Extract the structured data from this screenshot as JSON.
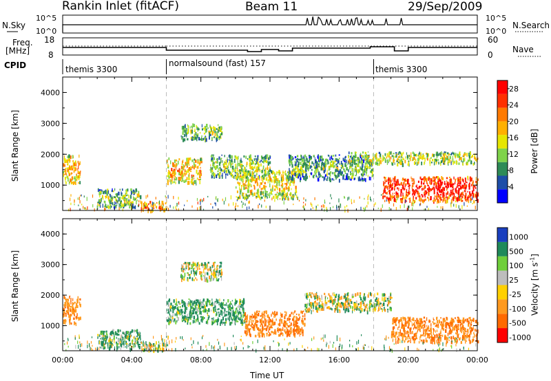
{
  "header": {
    "title": "Rankin Inlet (fitACF)",
    "beam": "Beam 11",
    "date": "29/Sep/2009"
  },
  "nsky_panel": {
    "left_label": "N.Sky",
    "right_label": "N.Search",
    "ticks_left": [
      "10^5",
      "10^0"
    ],
    "ticks_right": [
      "10^5",
      "10^0"
    ]
  },
  "freq_panel": {
    "left_label_line1": "Freq.",
    "left_label_line2": "[MHz]",
    "right_label": "Nave",
    "ticks_left": [
      "18",
      "8"
    ],
    "ticks_right": [
      "60",
      "0"
    ]
  },
  "cpid": {
    "label": "CPID",
    "segments": [
      {
        "name": "themis 3300",
        "start_hour": 0
      },
      {
        "name": "normalsound (fast) 157",
        "start_hour": 6
      },
      {
        "name": "themis 3300",
        "start_hour": 18
      }
    ]
  },
  "colors": {
    "power_scale": [
      "#0000ff",
      "#1e4ea8",
      "#2e8b57",
      "#7fd34a",
      "#e6e600",
      "#ffb000",
      "#ff7a00",
      "#ff3000",
      "#ff0000"
    ],
    "velocity_scale": [
      "#1a3fbf",
      "#1f8a5a",
      "#6fcf3a",
      "#bdbdbd",
      "#ffd000",
      "#ff9a1f",
      "#ff6a00",
      "#ff0000"
    ]
  },
  "chart_data": [
    {
      "type": "heatmap",
      "title": "",
      "xlabel": "",
      "ylabel": "Slant Range [km]",
      "xlim": [
        0,
        24
      ],
      "ylim": [
        180,
        4500
      ],
      "yticks": [
        "1000",
        "2000",
        "3000",
        "4000"
      ],
      "colorbar": {
        "label": "Power [dB]",
        "ticks": [
          "4",
          "8",
          "12",
          "16",
          "20",
          "24",
          "28"
        ],
        "range": [
          0,
          30
        ]
      },
      "echo_regions": [
        {
          "x": [
            0.0,
            1.0
          ],
          "y": [
            1100,
            2000
          ],
          "level": 20
        },
        {
          "x": [
            2.0,
            4.5
          ],
          "y": [
            300,
            900
          ],
          "level": 14
        },
        {
          "x": [
            4.5,
            6.0
          ],
          "y": [
            200,
            500
          ],
          "level": 24
        },
        {
          "x": [
            6.0,
            8.0
          ],
          "y": [
            1100,
            1900
          ],
          "level": 20
        },
        {
          "x": [
            6.8,
            9.2
          ],
          "y": [
            2500,
            3000
          ],
          "level": 14
        },
        {
          "x": [
            8.5,
            12.0
          ],
          "y": [
            1300,
            2000
          ],
          "level": 14
        },
        {
          "x": [
            10.0,
            13.5
          ],
          "y": [
            600,
            1500
          ],
          "level": 18
        },
        {
          "x": [
            13.0,
            18.0
          ],
          "y": [
            1200,
            2000
          ],
          "level": 12
        },
        {
          "x": [
            16.5,
            24.0
          ],
          "y": [
            1700,
            2100
          ],
          "level": 16
        },
        {
          "x": [
            18.5,
            24.0
          ],
          "y": [
            500,
            1300
          ],
          "level": 28
        }
      ]
    },
    {
      "type": "heatmap",
      "title": "",
      "xlabel": "Time UT",
      "ylabel": "Slant Range [km]",
      "xlim": [
        0,
        24
      ],
      "ylim": [
        180,
        4500
      ],
      "yticks": [
        "1000",
        "2000",
        "3000",
        "4000"
      ],
      "xticks": [
        "00:00",
        "04:00",
        "08:00",
        "12:00",
        "16:00",
        "20:00",
        "00:00"
      ],
      "colorbar": {
        "label": "Velocity [m s^-1]",
        "ticks": [
          "1000",
          "500",
          "100",
          "25",
          "-25",
          "-100",
          "-500",
          "-1000"
        ],
        "range": [
          -1000,
          1000
        ]
      },
      "echo_regions": [
        {
          "x": [
            0.0,
            1.0
          ],
          "y": [
            1100,
            2000
          ],
          "level": -400
        },
        {
          "x": [
            2.0,
            4.5
          ],
          "y": [
            300,
            900
          ],
          "level": 200
        },
        {
          "x": [
            4.5,
            6.0
          ],
          "y": [
            200,
            500
          ],
          "level": 0
        },
        {
          "x": [
            6.0,
            10.5
          ],
          "y": [
            1100,
            1900
          ],
          "level": 200
        },
        {
          "x": [
            6.8,
            9.2
          ],
          "y": [
            2500,
            3100
          ],
          "level": 0
        },
        {
          "x": [
            10.5,
            14.0
          ],
          "y": [
            700,
            1500
          ],
          "level": -500
        },
        {
          "x": [
            14.0,
            19.0
          ],
          "y": [
            1500,
            2100
          ],
          "level": 0
        },
        {
          "x": [
            19.0,
            24.0
          ],
          "y": [
            500,
            1300
          ],
          "level": -500
        }
      ]
    }
  ]
}
